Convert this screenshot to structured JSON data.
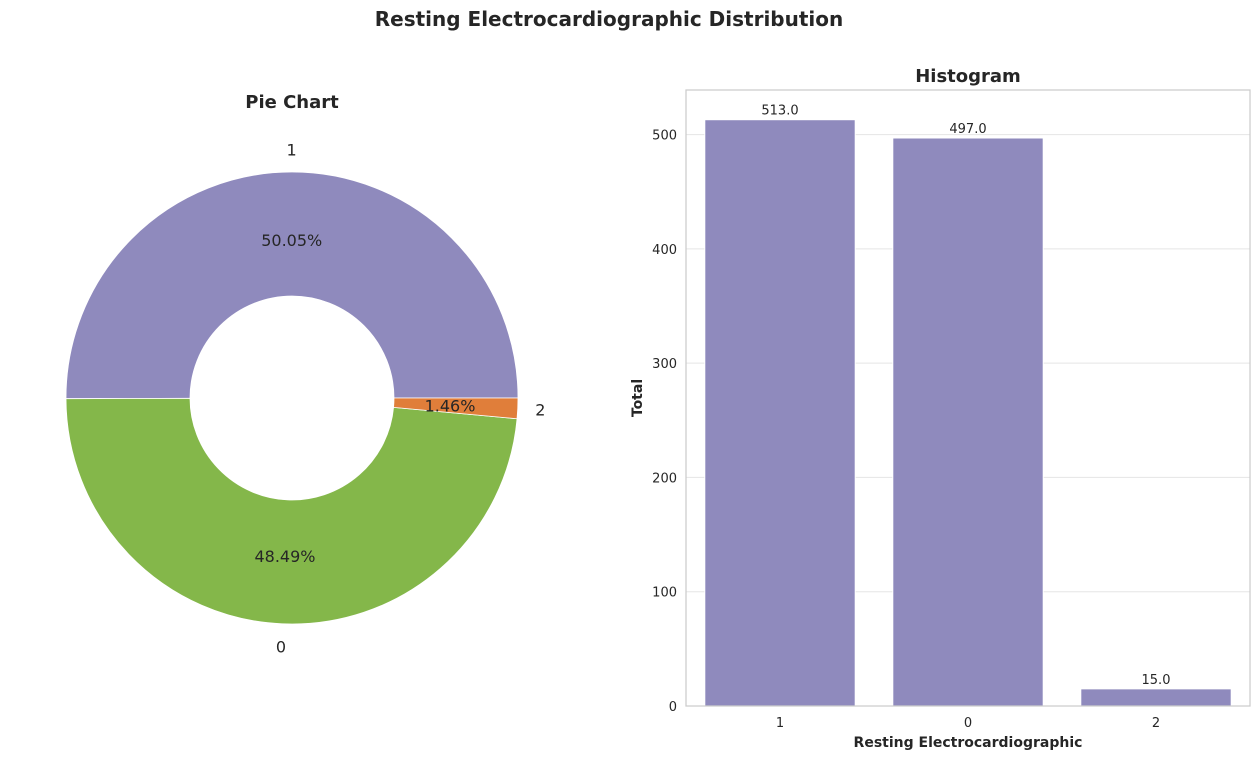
{
  "figure": {
    "title": "Resting Electrocardiographic Distribution"
  },
  "chart_data": [
    {
      "type": "pie",
      "title": "Pie Chart",
      "donut": true,
      "categories": [
        "1",
        "0",
        "2"
      ],
      "values": [
        513,
        497,
        15
      ],
      "percent_labels": [
        "50.05%",
        "48.49%",
        "1.46%"
      ],
      "colors": [
        "#8f8abd",
        "#84b74a",
        "#e07e3a"
      ]
    },
    {
      "type": "bar",
      "title": "Histogram",
      "xlabel": "Resting Electrocardiographic",
      "ylabel": "Total",
      "categories": [
        "1",
        "0",
        "2"
      ],
      "values": [
        513,
        497,
        15
      ],
      "value_labels": [
        "513.0",
        "497.0",
        "15.0"
      ],
      "ylim": [
        0,
        539
      ],
      "yticks": [
        0,
        100,
        200,
        300,
        400,
        500
      ],
      "grid": true,
      "color": "#8f8abd"
    }
  ]
}
